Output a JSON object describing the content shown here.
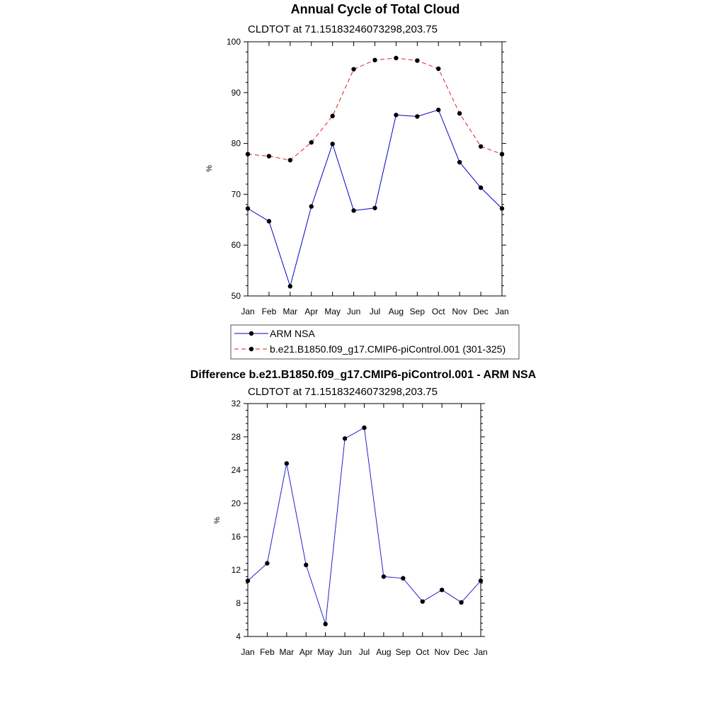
{
  "chart_data": [
    {
      "type": "line",
      "title": "Annual Cycle of Total Cloud",
      "subtitle": "CLDTOT at 71.15183246073298,203.75",
      "xlabel": "",
      "ylabel": "%",
      "categories": [
        "Jan",
        "Feb",
        "Mar",
        "Apr",
        "May",
        "Jun",
        "Jul",
        "Aug",
        "Sep",
        "Oct",
        "Nov",
        "Dec",
        "Jan"
      ],
      "ylim": [
        50,
        100
      ],
      "yticks": [
        50,
        60,
        70,
        80,
        90,
        100
      ],
      "grid": false,
      "legend_position": "bottom",
      "series": [
        {
          "name": "ARM NSA",
          "color": "#0000cc",
          "style": "solid",
          "values": [
            67.2,
            64.7,
            51.9,
            67.6,
            79.9,
            66.8,
            67.3,
            85.6,
            85.3,
            86.6,
            76.3,
            71.3,
            67.2
          ]
        },
        {
          "name": "b.e21.B1850.f09_g17.CMIP6-piControl.001 (301-325)",
          "color": "#dd2222",
          "style": "dashed",
          "values": [
            77.9,
            77.5,
            76.7,
            80.2,
            85.4,
            94.6,
            96.4,
            96.8,
            96.3,
            94.7,
            85.9,
            79.4,
            77.9
          ]
        }
      ]
    },
    {
      "type": "line",
      "title": "Difference b.e21.B1850.f09_g17.CMIP6-piControl.001 - ARM NSA",
      "subtitle": "CLDTOT at 71.15183246073298,203.75",
      "xlabel": "",
      "ylabel": "%",
      "categories": [
        "Jan",
        "Feb",
        "Mar",
        "Apr",
        "May",
        "Jun",
        "Jul",
        "Aug",
        "Sep",
        "Oct",
        "Nov",
        "Dec",
        "Jan"
      ],
      "ylim": [
        4,
        32
      ],
      "yticks": [
        4,
        8,
        12,
        16,
        20,
        24,
        28,
        32
      ],
      "grid": false,
      "series": [
        {
          "name": "Difference",
          "color": "#2222cc",
          "style": "solid",
          "values": [
            10.7,
            12.8,
            24.8,
            12.6,
            5.5,
            27.8,
            29.1,
            11.2,
            11.0,
            8.2,
            9.6,
            8.1,
            10.7
          ]
        }
      ]
    }
  ]
}
